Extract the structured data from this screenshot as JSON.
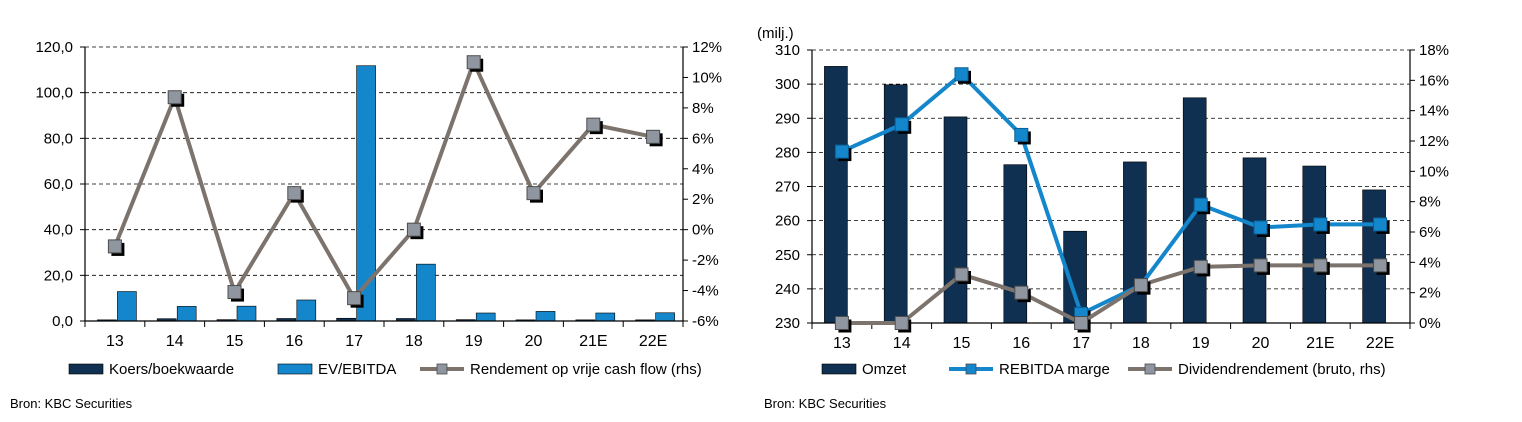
{
  "colors": {
    "dark_navy": "#0f3050",
    "light_blue": "#1486cc",
    "line_gray": "#7d736d",
    "marker_fill": "#8f96a0",
    "grid": "#000000"
  },
  "chart_data": [
    {
      "type": "bar",
      "categories": [
        "13",
        "14",
        "15",
        "16",
        "17",
        "18",
        "19",
        "20",
        "21E",
        "22E"
      ],
      "y_left": {
        "min": 0,
        "max": 120,
        "step": 20,
        "tick_labels": [
          "0,0",
          "20,0",
          "40,0",
          "60,0",
          "80,0",
          "100,0",
          "120,0"
        ]
      },
      "y_right": {
        "min": -6,
        "max": 12,
        "step": 2,
        "tick_labels": [
          "-6%",
          "-4%",
          "-2%",
          "0%",
          "2%",
          "4%",
          "6%",
          "8%",
          "10%",
          "12%"
        ]
      },
      "grid": "horizontal dashed",
      "legend_position": "bottom",
      "series": [
        {
          "name": "Koers/boekwaarde",
          "kind": "bar",
          "axis": "left",
          "color": "#0f3050",
          "values": [
            0.5,
            1.0,
            0.6,
            1.1,
            1.2,
            1.1,
            0.6,
            0.5,
            0.5,
            0.5
          ]
        },
        {
          "name": "EV/EBITDA",
          "kind": "bar",
          "axis": "left",
          "color": "#1486cc",
          "values": [
            12.9,
            6.4,
            6.5,
            9.2,
            111.8,
            24.9,
            3.5,
            4.2,
            3.5,
            3.6
          ]
        },
        {
          "name": "Rendement op vrije cash flow (rhs)",
          "kind": "line",
          "axis": "right",
          "color": "#7d736d",
          "values": [
            -1.1,
            8.7,
            -4.1,
            2.4,
            -4.5,
            0.0,
            11.0,
            2.4,
            6.9,
            6.1
          ]
        }
      ]
    },
    {
      "type": "bar",
      "unit_label": "(milj.)",
      "categories": [
        "13",
        "14",
        "15",
        "16",
        "17",
        "18",
        "19",
        "20",
        "21E",
        "22E"
      ],
      "y_left": {
        "min": 230,
        "max": 310,
        "step": 10,
        "tick_labels": [
          "230",
          "240",
          "250",
          "260",
          "270",
          "280",
          "290",
          "300",
          "310"
        ]
      },
      "y_right": {
        "min": 0,
        "max": 18,
        "step": 2,
        "tick_labels": [
          "0%",
          "2%",
          "4%",
          "6%",
          "8%",
          "10%",
          "12%",
          "14%",
          "16%",
          "18%"
        ]
      },
      "grid": "horizontal dashed",
      "legend_position": "bottom",
      "series": [
        {
          "name": "Omzet",
          "kind": "bar",
          "axis": "left",
          "color": "#0f3050",
          "values": [
            305.2,
            299.8,
            290.4,
            276.4,
            256.9,
            277.2,
            296.0,
            278.4,
            276.0,
            269.0
          ]
        },
        {
          "name": "REBITDA marge",
          "kind": "line",
          "axis": "right",
          "color": "#1486cc",
          "values": [
            11.3,
            13.1,
            16.4,
            12.4,
            0.6,
            2.5,
            7.8,
            6.3,
            6.5,
            6.5
          ]
        },
        {
          "name": "Dividendrendement (bruto, rhs)",
          "kind": "line",
          "axis": "right",
          "color": "#7d736d",
          "values": [
            0.0,
            0.0,
            3.2,
            2.0,
            0.0,
            2.5,
            3.7,
            3.8,
            3.8,
            3.8
          ]
        }
      ]
    }
  ],
  "sources": {
    "left": "Bron: KBC Securities",
    "right": "Bron: KBC Securities"
  }
}
